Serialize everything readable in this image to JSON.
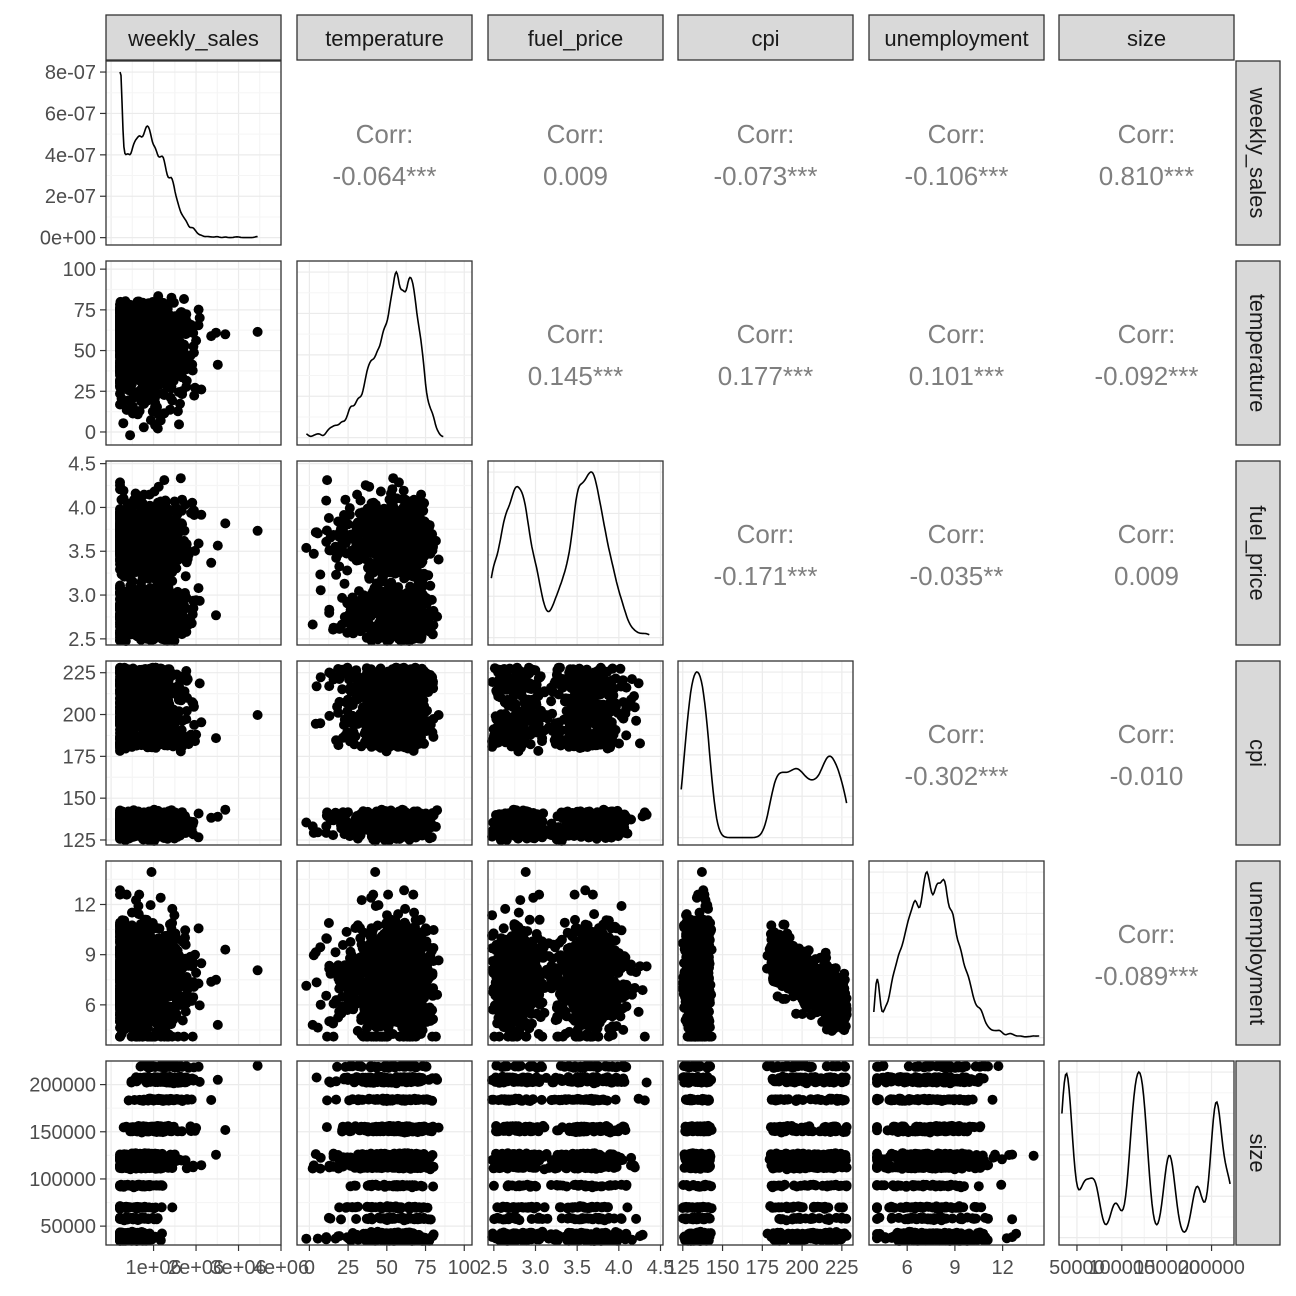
{
  "chart_data": {
    "type": "scatter",
    "variables": [
      "weekly_sales",
      "temperature",
      "fuel_price",
      "cpi",
      "unemployment",
      "size"
    ],
    "ticks": {
      "weekly_sales": [
        "1e+06",
        "2e+06",
        "3e+06",
        "4e+06"
      ],
      "temperature": [
        "0",
        "25",
        "50",
        "75",
        "100"
      ],
      "fuel_price": [
        "2.5",
        "3.0",
        "3.5",
        "4.0",
        "4.5"
      ],
      "cpi": [
        "125",
        "150",
        "175",
        "200",
        "225"
      ],
      "unemployment": [
        "6",
        "9",
        "12"
      ],
      "size": [
        "50000",
        "100000",
        "150000",
        "200000"
      ]
    },
    "density_y_ticks": [
      "0e+00",
      "2e-07",
      "4e-07",
      "6e-07",
      "8e-07"
    ],
    "correlations": [
      {
        "row": "weekly_sales",
        "col": "temperature",
        "label": "Corr:",
        "value": "-0.064***"
      },
      {
        "row": "weekly_sales",
        "col": "fuel_price",
        "label": "Corr:",
        "value": "0.009"
      },
      {
        "row": "weekly_sales",
        "col": "cpi",
        "label": "Corr:",
        "value": "-0.073***"
      },
      {
        "row": "weekly_sales",
        "col": "unemployment",
        "label": "Corr:",
        "value": "-0.106***"
      },
      {
        "row": "weekly_sales",
        "col": "size",
        "label": "Corr:",
        "value": "0.810***"
      },
      {
        "row": "temperature",
        "col": "fuel_price",
        "label": "Corr:",
        "value": "0.145***"
      },
      {
        "row": "temperature",
        "col": "cpi",
        "label": "Corr:",
        "value": "0.177***"
      },
      {
        "row": "temperature",
        "col": "unemployment",
        "label": "Corr:",
        "value": "0.101***"
      },
      {
        "row": "temperature",
        "col": "size",
        "label": "Corr:",
        "value": "-0.092***"
      },
      {
        "row": "fuel_price",
        "col": "cpi",
        "label": "Corr:",
        "value": "-0.171***"
      },
      {
        "row": "fuel_price",
        "col": "unemployment",
        "label": "Corr:",
        "value": "-0.035**"
      },
      {
        "row": "fuel_price",
        "col": "size",
        "label": "Corr:",
        "value": "0.009"
      },
      {
        "row": "cpi",
        "col": "unemployment",
        "label": "Corr:",
        "value": "-0.302***"
      },
      {
        "row": "cpi",
        "col": "size",
        "label": "Corr:",
        "value": "-0.010"
      },
      {
        "row": "unemployment",
        "col": "size",
        "label": "Corr:",
        "value": "-0.089***"
      }
    ],
    "grid": true,
    "theme": "bw",
    "colors": {
      "strip_fill": "#d9d9d9",
      "strip_border": "#333333",
      "grid_major": "#ebebeb",
      "grid_minor": "#f5f5f5",
      "points": "#000000",
      "corr_text": "#7f7f7f"
    }
  }
}
